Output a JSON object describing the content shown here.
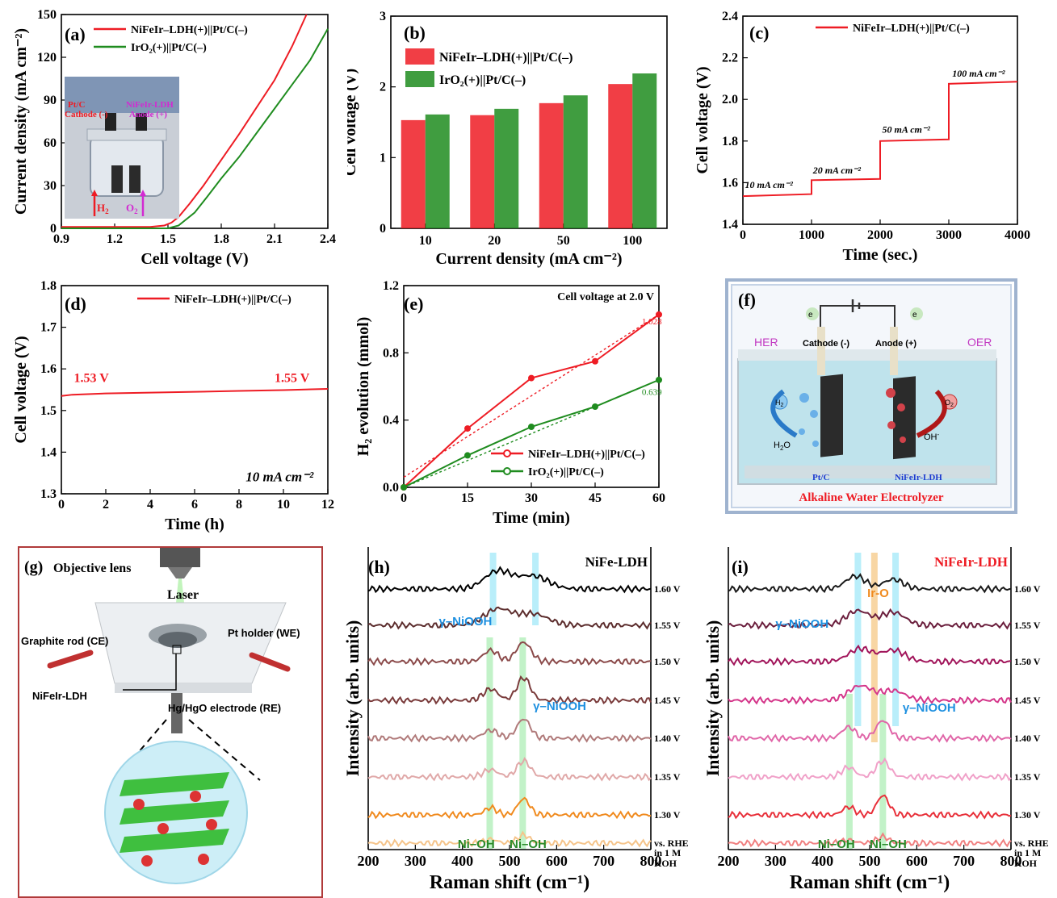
{
  "panels": {
    "a": {
      "letter": "(a)",
      "inset_pt": "Pt/C",
      "inset_cat": "Cathode (-)",
      "inset_ldh": "NiFeIr-LDH",
      "inset_anode": "Anode (+)",
      "inset_h2": "H",
      "inset_h2_sub": "2",
      "inset_o2": "O",
      "inset_o2_sub": "2"
    },
    "b": {
      "letter": "(b)"
    },
    "c": {
      "letter": "(c)"
    },
    "d": {
      "letter": "(d)"
    },
    "e": {
      "letter": "(e)"
    },
    "f": {
      "letter": "(f)",
      "her": "HER",
      "oer": "OER",
      "cathode": "Cathode (-)",
      "anode": "Anode (+)",
      "e1": "e",
      "e2": "e",
      "h2o": "H",
      "h2o_sub": "2",
      "h2o_o": "O",
      "oh": "OH",
      "oh_sup": "-",
      "h2": "H",
      "h2_sub": "2",
      "o2": "O",
      "o2_sub": "2",
      "ptc": "Pt/C",
      "ldh": "NiFeIr-LDH",
      "caption": "Alkaline Water Electrolyzer"
    },
    "g": {
      "letter": "(g)",
      "objective": "Objective lens",
      "laser": "Laser",
      "graphite": "Graphite rod (CE)",
      "pt_holder": "Pt holder (WE)",
      "nifeir": "NiFeIr-LDH",
      "hg": "Hg/HgO electrode (RE)"
    },
    "h": {
      "letter": "(h)"
    },
    "i": {
      "letter": "(i)"
    }
  },
  "chart_data": [
    {
      "id": "a",
      "type": "line",
      "xlabel": "Cell voltage (V)",
      "ylabel": "Current density (mA cm⁻²)",
      "xlim": [
        0.9,
        2.4
      ],
      "ylim": [
        0,
        150
      ],
      "xticks": [
        "0.9",
        "1.2",
        "1.5",
        "1.8",
        "2.1",
        "2.4"
      ],
      "yticks": [
        "0",
        "30",
        "60",
        "90",
        "120",
        "150"
      ],
      "series": [
        {
          "name": "NiFeIr–LDH(+)||Pt/C(–)",
          "color": "#ee1c24",
          "x": [
            0.9,
            1.4,
            1.48,
            1.52,
            1.56,
            1.62,
            1.7,
            1.8,
            1.9,
            2.0,
            2.1,
            2.2,
            2.28
          ],
          "y": [
            1,
            1,
            2,
            4,
            8,
            17,
            30,
            48,
            66,
            85,
            104,
            128,
            150
          ]
        },
        {
          "name": "IrO₂(+)||Pt/C(–)",
          "color": "#1f8c1f",
          "x": [
            0.9,
            1.5,
            1.56,
            1.6,
            1.65,
            1.72,
            1.8,
            1.9,
            2.0,
            2.1,
            2.2,
            2.3,
            2.4
          ],
          "y": [
            0,
            0,
            2,
            6,
            11,
            22,
            35,
            50,
            67,
            84,
            101,
            118,
            140
          ]
        }
      ]
    },
    {
      "id": "b",
      "type": "bar",
      "xlabel": "Current density (mA cm⁻²)",
      "ylabel": "Cell voltage (V)",
      "categories": [
        "10",
        "20",
        "50",
        "100"
      ],
      "ylim": [
        0,
        3
      ],
      "yticks": [
        "0",
        "1",
        "2",
        "3"
      ],
      "series": [
        {
          "name": "NiFeIr–LDH(+)||Pt/C(–)",
          "color": "#ee1c24",
          "values": [
            1.53,
            1.6,
            1.77,
            2.04
          ]
        },
        {
          "name": "IrO₂(+)||Pt/C(–)",
          "color": "#1f8c1f",
          "values": [
            1.61,
            1.69,
            1.88,
            2.19
          ]
        }
      ]
    },
    {
      "id": "c",
      "type": "line",
      "xlabel": "Time (sec.)",
      "ylabel": "Cell voltage (V)",
      "xlim": [
        0,
        4000
      ],
      "ylim": [
        1.4,
        2.4
      ],
      "xticks": [
        "0",
        "1000",
        "2000",
        "3000",
        "4000"
      ],
      "yticks": [
        "1.4",
        "1.6",
        "1.8",
        "2.0",
        "2.2",
        "2.4"
      ],
      "series": [
        {
          "name": "NiFeIr–LDH(+)||Pt/C(–)",
          "color": "#ee1c24",
          "x": [
            0,
            1000,
            1000,
            2000,
            2000,
            3000,
            3000,
            4000
          ],
          "y": [
            1.535,
            1.545,
            1.612,
            1.618,
            1.8,
            1.808,
            2.075,
            2.085
          ]
        }
      ],
      "annotations": [
        {
          "text": "10 mA cm⁻²",
          "x": 30,
          "y": 1.575
        },
        {
          "text": "20 mA cm⁻²",
          "x": 1020,
          "y": 1.645
        },
        {
          "text": "50 mA cm⁻²",
          "x": 2030,
          "y": 1.84
        },
        {
          "text": "100 mA cm⁻²",
          "x": 3050,
          "y": 2.11
        }
      ]
    },
    {
      "id": "d",
      "type": "line",
      "xlabel": "Time (h)",
      "ylabel": "Cell voltage (V)",
      "xlim": [
        0,
        12
      ],
      "ylim": [
        1.3,
        1.8
      ],
      "xticks": [
        "0",
        "2",
        "4",
        "6",
        "8",
        "10",
        "12"
      ],
      "yticks": [
        "1.3",
        "1.4",
        "1.5",
        "1.6",
        "1.7",
        "1.8"
      ],
      "series": [
        {
          "name": "NiFeIr–LDH(+)||Pt/C(–)",
          "color": "#ee1c24",
          "x": [
            0,
            0.5,
            2,
            4,
            6,
            8,
            10,
            12
          ],
          "y": [
            1.535,
            1.538,
            1.541,
            1.543,
            1.545,
            1.547,
            1.549,
            1.552
          ]
        }
      ],
      "annotations": [
        {
          "text": "1.53 V",
          "x": 0.2,
          "y": 1.565
        },
        {
          "text": "1.55 V",
          "x": 9.6,
          "y": 1.565
        },
        {
          "text": "10 mA cm⁻²",
          "x": 8.3,
          "y": 1.33
        }
      ]
    },
    {
      "id": "e",
      "type": "line",
      "title": "Cell voltage at 2.0 V",
      "xlabel": "Time (min)",
      "ylabel": "H₂ evolution (mmol)",
      "xlim": [
        0,
        60
      ],
      "ylim": [
        0,
        1.2
      ],
      "xticks": [
        "0",
        "15",
        "30",
        "45",
        "60"
      ],
      "yticks": [
        "0.0",
        "0.4",
        "0.8",
        "1.2"
      ],
      "series": [
        {
          "name": "NiFeIr–LDH(+)||Pt/C(–)",
          "color": "#ee1c24",
          "x": [
            0,
            15,
            30,
            45,
            60
          ],
          "y": [
            0,
            0.35,
            0.65,
            0.75,
            1.028
          ]
        },
        {
          "name": "IrO₂(+)||Pt/C(–)",
          "color": "#1f8c1f",
          "x": [
            0,
            15,
            30,
            45,
            60
          ],
          "y": [
            0,
            0.19,
            0.36,
            0.48,
            0.639
          ]
        }
      ],
      "value_labels": [
        "1.028",
        "0.639"
      ]
    },
    {
      "id": "h",
      "type": "line",
      "title": "NiFe-LDH",
      "xlabel": "Raman shift (cm⁻¹)",
      "ylabel": "Intensity (arb. units)",
      "xlim": [
        200,
        800
      ],
      "xticks": [
        "200",
        "300",
        "400",
        "500",
        "600",
        "700",
        "800"
      ],
      "series": [
        {
          "name": "1.60 V",
          "color": "#000000"
        },
        {
          "name": "1.55 V",
          "color": "#5c2d2d"
        },
        {
          "name": "1.50 V",
          "color": "#8b4a4a"
        },
        {
          "name": "1.45 V",
          "color": "#7a3b3b"
        },
        {
          "name": "1.40 V",
          "color": "#b07a7a"
        },
        {
          "name": "1.35 V",
          "color": "#e0a8a8"
        },
        {
          "name": "1.30 V",
          "color": "#f08a1e"
        },
        {
          "name": "vs. RHE",
          "color": "#f5c48a"
        }
      ],
      "bottom_labels": [
        "in 1 M",
        "KOH"
      ],
      "annotations": [
        "γ–NiOOH",
        "γ–NiOOH",
        "Ni–OH",
        "Ni–OH"
      ]
    },
    {
      "id": "i",
      "type": "line",
      "title": "NiFeIr-LDH",
      "xlabel": "Raman shift (cm⁻¹)",
      "ylabel": "Intensity (arb. units)",
      "xlim": [
        200,
        800
      ],
      "xticks": [
        "200",
        "300",
        "400",
        "500",
        "600",
        "700",
        "800"
      ],
      "series": [
        {
          "name": "1.60 V",
          "color": "#1a1a1a"
        },
        {
          "name": "1.55 V",
          "color": "#6b1f3d"
        },
        {
          "name": "1.50 V",
          "color": "#a1145a"
        },
        {
          "name": "1.45 V",
          "color": "#d4368a"
        },
        {
          "name": "1.40 V",
          "color": "#e066a8"
        },
        {
          "name": "1.35 V",
          "color": "#f0a0c8"
        },
        {
          "name": "1.30 V",
          "color": "#e8303a"
        },
        {
          "name": "vs. RHE",
          "color": "#f08080"
        }
      ],
      "bottom_labels": [
        "in 1 M",
        "KOH"
      ],
      "annotations": [
        "Ir-O",
        "γ–NiOOH",
        "γ–NiOOH",
        "Ni–OH",
        "Ni–OH"
      ]
    }
  ]
}
